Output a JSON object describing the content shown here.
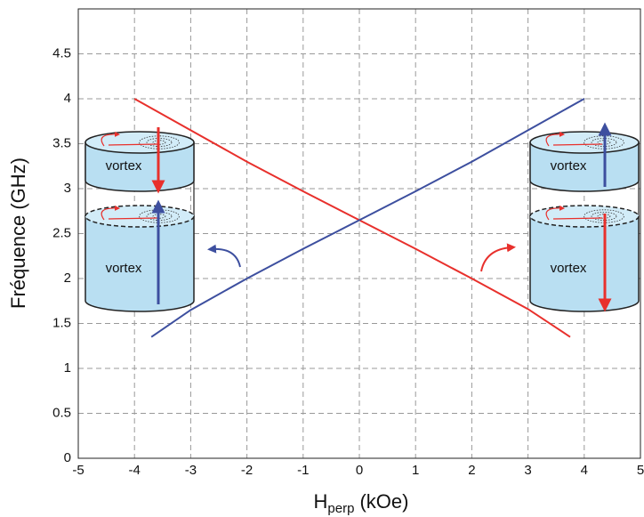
{
  "chart_data": {
    "type": "line",
    "y_label": "Fréquence (GHz)",
    "x_label": "H",
    "x_label_subscript": "perp",
    "x_label_suffix": "(kOe)",
    "xlim": [
      -5,
      5
    ],
    "xticks": [
      -5,
      -4,
      -3,
      -2,
      -1,
      0,
      1,
      2,
      3,
      4,
      5
    ],
    "ylim": [
      0,
      5
    ],
    "yticks": [
      0,
      0.5,
      1,
      1.5,
      2,
      2.5,
      3,
      3.5,
      4,
      4.5
    ],
    "grid": true,
    "series": [
      {
        "color": "#e8302c",
        "x": [
          -4,
          -3,
          -2,
          -1,
          0,
          1,
          2,
          3,
          3.75
        ],
        "values": [
          4,
          3.65,
          3.3,
          2.97,
          2.65,
          2.33,
          2.0,
          1.66,
          1.35
        ]
      },
      {
        "color": "#3d4f9f",
        "x": [
          -3.7,
          -3,
          -2,
          -1,
          0,
          1,
          2,
          3,
          4
        ],
        "values": [
          1.35,
          1.65,
          2.0,
          2.33,
          2.65,
          2.97,
          3.3,
          3.65,
          4
        ]
      }
    ],
    "annotations": [
      "vortex",
      "vortex",
      "vortex",
      "vortex"
    ]
  }
}
